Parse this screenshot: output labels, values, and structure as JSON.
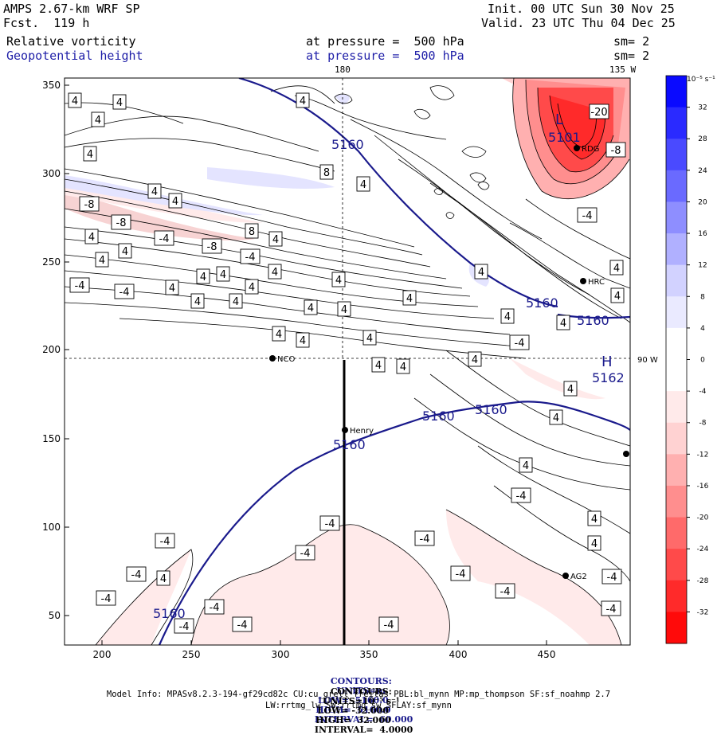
{
  "header": {
    "model": "AMPS 2.67-km WRF SP",
    "fcst": "Fcst.  119 h",
    "init": "Init. 00 UTC Sun 30 Nov 25",
    "valid": "Valid. 23 UTC Thu 04 Dec 25",
    "field1_name": "Relative vorticity",
    "field1_level": "at pressure =  500 hPa",
    "field1_sm": "sm= 2",
    "field2_name": "Geopotential height",
    "field2_level": "at pressure =  500 hPa",
    "field2_sm": "sm= 2"
  },
  "map": {
    "lon_label_180": "180",
    "lon_label_135w": "135 W",
    "lon_label_90w": "90 W",
    "x_ticks": [
      "200",
      "250",
      "300",
      "350",
      "400",
      "450"
    ],
    "y_ticks": [
      "50",
      "100",
      "150",
      "200",
      "250",
      "300",
      "350"
    ],
    "stations": [
      {
        "name": "RDG"
      },
      {
        "name": "HRC"
      },
      {
        "name": "NCO"
      },
      {
        "name": "Henry"
      },
      {
        "name": "AG2"
      }
    ],
    "low_label": "L",
    "low_value": "5101",
    "high_label": "H",
    "high_value": "5162",
    "height_labels": [
      "5160",
      "5160",
      "5160",
      "5160",
      "5160",
      "5160",
      "5160"
    ]
  },
  "colorbar": {
    "unit_label": "10⁻⁵ s⁻¹",
    "ticks": [
      "32",
      "28",
      "24",
      "20",
      "16",
      "12",
      "8",
      "4",
      "0",
      "-4",
      "-8",
      "-12",
      "-16",
      "-20",
      "-24",
      "-28",
      "-32"
    ],
    "colors": {
      "pos": [
        "#0a0aff",
        "#2a2aff",
        "#4a4aff",
        "#6a6aff",
        "#8e8eff",
        "#b0b0ff",
        "#d2d2ff",
        "#eaeaff"
      ],
      "neg": [
        "#ffeaea",
        "#ffd2d2",
        "#ffb0b0",
        "#ff8e8e",
        "#ff6a6a",
        "#ff4a4a",
        "#ff2a2a",
        "#ff0a0a"
      ]
    }
  },
  "footer": {
    "line1_label": "CONTOURS:",
    "line1_units": "UNITS=m",
    "line1_low": "LOW=  5160.0",
    "line1_high": "HIGH=  5160.0",
    "line1_interval": "INTERVAL=  60.000",
    "line2_label": "CONTOURS:",
    "line2_units": "UNITS=10⁻⁵ s⁻¹",
    "line2_low": "LOW= -32.000",
    "line2_high": "HIGH=  32.000",
    "line2_interval": "INTERVAL=  4.0000",
    "model_info": "Model Info: MPASv8.2.3-194-gf29cd82c CU:cu_grell_freitas PBL:bl_mynn MP:mp_thompson SF:sf_noahmp 2.7",
    "model_info2": "LW:rrtmg_lw SW:rrtmg_sw SFLAY:sf_mynn"
  }
}
